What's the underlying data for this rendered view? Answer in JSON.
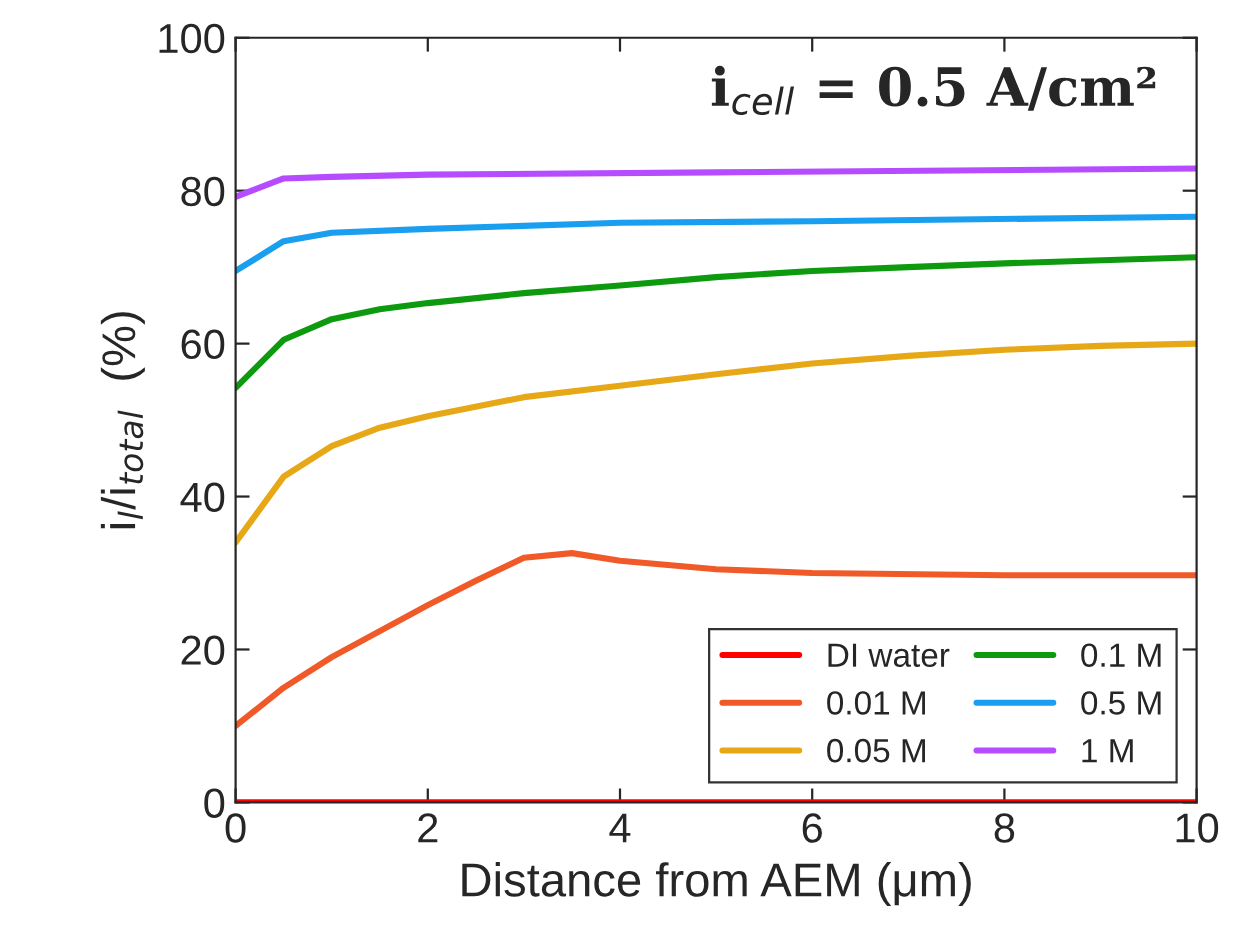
{
  "chart_data": {
    "type": "line",
    "xlabel": "Distance from AEM (μm)",
    "ylabel": "i$_{l}$/i$_{total}$  (%)",
    "annotations": [
      "i$_{cell}$ = 0.5 A/cm²"
    ],
    "xlim": [
      0,
      10
    ],
    "ylim": [
      0,
      100
    ],
    "xticks": [
      0,
      2,
      4,
      6,
      8,
      10
    ],
    "yticks": [
      0,
      20,
      40,
      60,
      80,
      100
    ],
    "grid": false,
    "legend": "bottom right",
    "marker": "none",
    "line_style": "solid",
    "series": [
      {
        "name": "DI water",
        "color": "#ff0000",
        "x": [
          0,
          10
        ],
        "values": [
          0,
          0
        ]
      },
      {
        "name": "0.01 M",
        "color": "#f05a28",
        "x": [
          0,
          0.5,
          1,
          1.5,
          2,
          2.5,
          3,
          3.5,
          4,
          5,
          6,
          8,
          10
        ],
        "values": [
          10,
          15,
          19,
          22.4,
          25.8,
          29,
          32,
          32.6,
          31.6,
          30.5,
          30,
          29.7,
          29.7
        ]
      },
      {
        "name": "0.05 M",
        "color": "#e6a817",
        "x": [
          0,
          0.5,
          1,
          1.5,
          2,
          3,
          4,
          5,
          6,
          7,
          8,
          9,
          10
        ],
        "values": [
          34,
          42.6,
          46.6,
          49,
          50.5,
          53,
          54.5,
          56,
          57.4,
          58.4,
          59.2,
          59.7,
          60
        ]
      },
      {
        "name": "0.1 M",
        "color": "#0e9a0e",
        "x": [
          0,
          0.5,
          1,
          1.5,
          2,
          3,
          4,
          5,
          6,
          7,
          8,
          10
        ],
        "values": [
          54.2,
          60.5,
          63.2,
          64.5,
          65.3,
          66.6,
          67.6,
          68.7,
          69.5,
          70,
          70.5,
          71.3
        ]
      },
      {
        "name": "0.5 M",
        "color": "#1a9ef0",
        "x": [
          0,
          0.5,
          1,
          2,
          4,
          6,
          10
        ],
        "values": [
          69.5,
          73.4,
          74.5,
          75,
          75.8,
          76,
          76.6
        ]
      },
      {
        "name": "1 M",
        "color": "#b54cff",
        "x": [
          0,
          0.5,
          1,
          2,
          5,
          10
        ],
        "values": [
          79.2,
          81.6,
          81.8,
          82.1,
          82.4,
          82.9
        ]
      }
    ]
  }
}
